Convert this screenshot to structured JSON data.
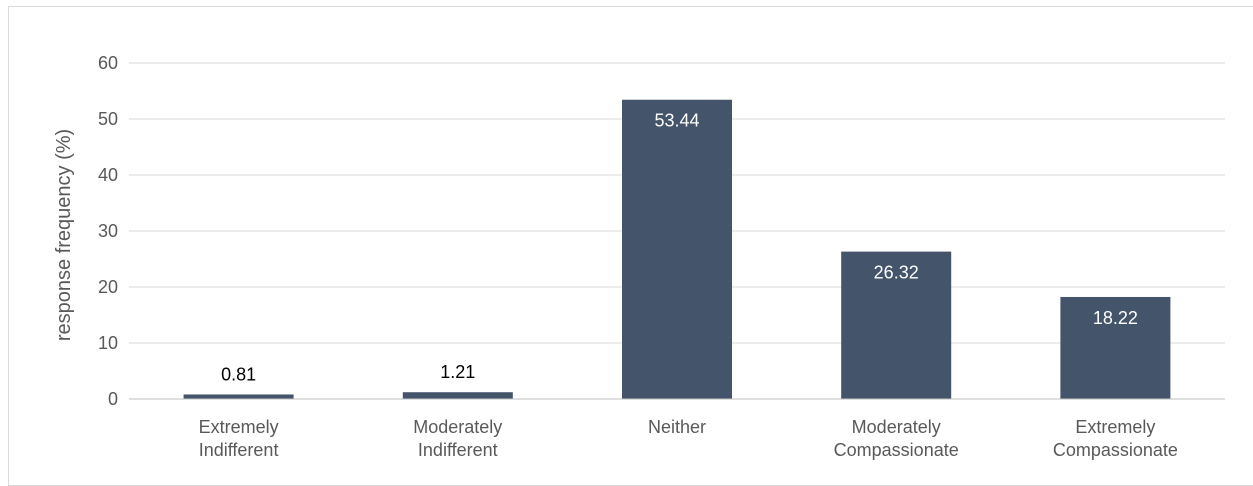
{
  "chart_data": {
    "type": "bar",
    "categories": [
      [
        "Extremely",
        "Indifferent"
      ],
      [
        "Moderately",
        "Indifferent"
      ],
      [
        "Neither"
      ],
      [
        "Moderately",
        "Compassionate"
      ],
      [
        "Extremely",
        "Compassionate"
      ]
    ],
    "values": [
      0.81,
      1.21,
      53.44,
      26.32,
      18.22
    ],
    "data_labels": [
      "0.81",
      "1.21",
      "53.44",
      "26.32",
      "18.22"
    ],
    "title": "",
    "xlabel": "",
    "ylabel": "response frequency (%)",
    "ylim": [
      0,
      60
    ],
    "yticks": [
      0,
      10,
      20,
      30,
      40,
      50,
      60
    ],
    "grid": true,
    "legend": "none",
    "bar_color": "#44546a",
    "label_inside_color": "#ffffff",
    "label_outside_color": "#000000"
  }
}
